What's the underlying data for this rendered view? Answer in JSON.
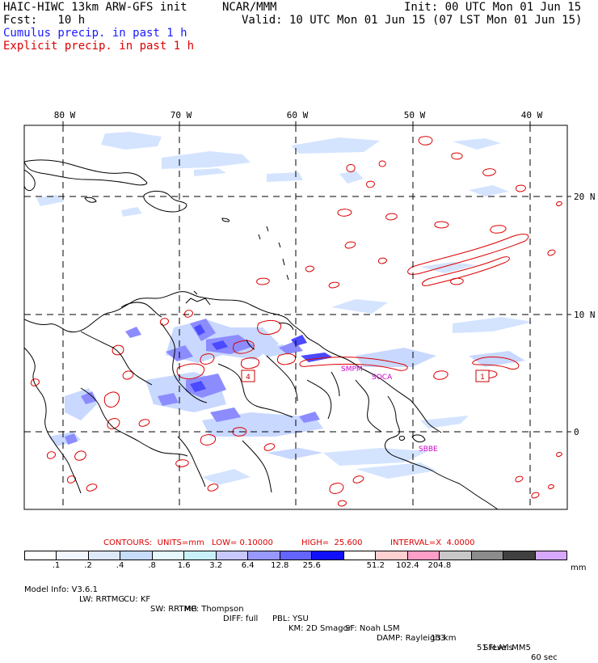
{
  "header": {
    "model": "HAIC-HIWC 13km ARW-GFS init",
    "org": "NCAR/MMM",
    "init": "Init: 00 UTC Mon 01 Jun 15",
    "fcst": "Fcst:   10 h",
    "valid": "Valid: 10 UTC Mon 01 Jun 15 (07 LST Mon 01 Jun 15)",
    "legend_cumulus": "Cumulus precip. in past 1 h",
    "legend_explicit": "Explicit precip. in past 1 h",
    "legend_cumulus_color": "#1a1aff",
    "legend_explicit_color": "#dd0000"
  },
  "map": {
    "lon_labels": [
      "80 W",
      "70 W",
      "60 W",
      "50 W",
      "40 W"
    ],
    "lat_labels": [
      "20 N",
      "10 N",
      "0"
    ],
    "stations": [
      "SMPM",
      "SOCA",
      "SBBE"
    ],
    "box_labels": [
      "4",
      "1"
    ],
    "colors": {
      "coast": "#000000",
      "explicit": "#dd0000",
      "cumulus_light": "#c8dcff",
      "cumulus_mid": "#8c8cff",
      "cumulus_dark": "#4a4aff"
    }
  },
  "contour_info": {
    "contours": "CONTOURS:  UNITS=mm",
    "low": "LOW= 0.10000",
    "high": "HIGH=  25.600",
    "interval": "INTERVAL=X  4.0000"
  },
  "colorbar": {
    "colors": [
      "#ffffff",
      "#f2f7ff",
      "#dde8fb",
      "#c7dcf8",
      "#e6f8fb",
      "#c8f0f8",
      "#c8c8ff",
      "#9898ff",
      "#6464ff",
      "#1010ff",
      "#ffffff",
      "#ffd0d0",
      "#ff9ec8",
      "#c8c8c8",
      "#8c8c8c",
      "#404040",
      "#d8a8ff"
    ],
    "labels": [
      ".1",
      ".2",
      ".4",
      ".8",
      "1.6",
      "3.2",
      "6.4",
      "12.8",
      "25.6",
      "51.2",
      "102.4",
      "204.8"
    ],
    "unit": "mm"
  },
  "model_info": {
    "line1": [
      "Model Info: V3.6.1",
      "CU: KF",
      "MP: Thompson",
      "PBL: YSU",
      "SF: Noah LSM",
      "13 km",
      "51 levels",
      "60 sec"
    ],
    "line2": [
      "LW: RRTMG",
      "SW: RRTMG",
      "DIFF: full",
      "KM: 2D Smagor",
      "DAMP: Rayleigh3",
      "SFLAY: MM5"
    ]
  }
}
